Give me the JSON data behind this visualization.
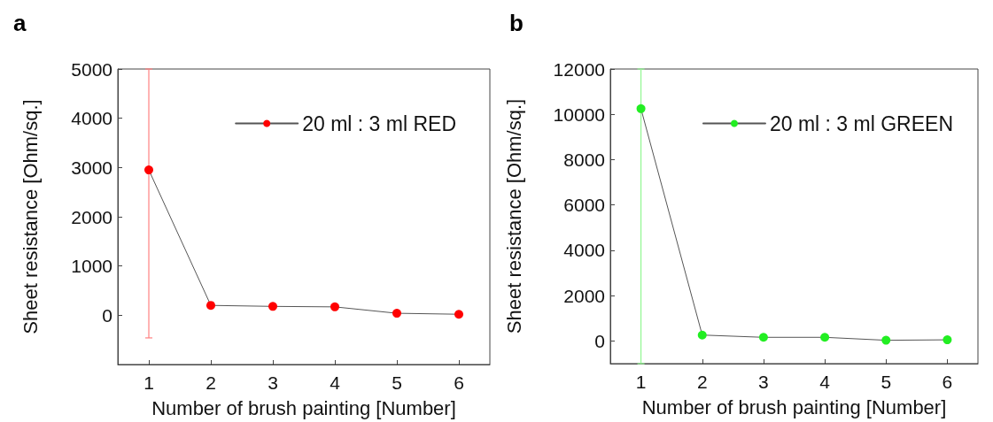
{
  "chart_data": [
    {
      "type": "line",
      "title": "a",
      "xlabel": "Number of brush painting [Number]",
      "ylabel": "Sheet resistance [Ohm/sq.]",
      "x": [
        1,
        2,
        3,
        4,
        5,
        6
      ],
      "xlim": [
        0.5,
        6.5
      ],
      "xticks": [
        1,
        2,
        3,
        4,
        5,
        6
      ],
      "ylim": [
        -1000,
        5000
      ],
      "yticks": [
        0,
        1000,
        2000,
        3000,
        4000,
        5000
      ],
      "legend": "top right",
      "marker": "circle",
      "line_style": "solid",
      "grid": false,
      "series": [
        {
          "name": "20 ml : 3 ml RED",
          "color": "#ff0000",
          "values": [
            2950,
            200,
            180,
            170,
            40,
            20
          ],
          "errors": [
            [
              -460,
              5000
            ],
            null,
            null,
            null,
            null,
            null
          ]
        }
      ]
    },
    {
      "type": "line",
      "title": "b",
      "xlabel": "Number of brush painting [Number]",
      "ylabel": "Sheet resistance [Ohm/sq.]",
      "x": [
        1,
        2,
        3,
        4,
        5,
        6
      ],
      "xlim": [
        0.5,
        6.5
      ],
      "xticks": [
        1,
        2,
        3,
        4,
        5,
        6
      ],
      "ylim": [
        -1000,
        12000
      ],
      "yticks": [
        0,
        2000,
        4000,
        6000,
        8000,
        10000,
        12000
      ],
      "legend": "top right",
      "marker": "circle",
      "line_style": "solid",
      "grid": false,
      "series": [
        {
          "name": "20 ml : 3 ml GREEN",
          "color": "#22ee22",
          "values": [
            10250,
            260,
            160,
            160,
            30,
            50
          ],
          "errors": [
            [
              -1000,
              12000
            ],
            null,
            null,
            null,
            null,
            null
          ]
        }
      ]
    }
  ]
}
